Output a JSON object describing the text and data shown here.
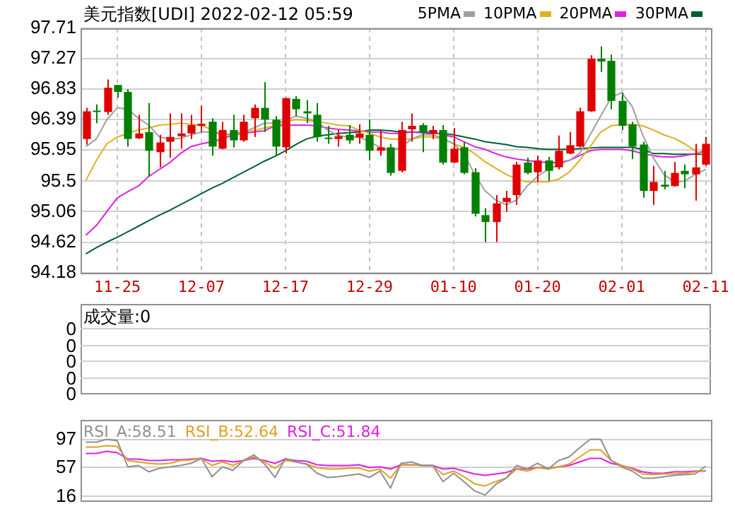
{
  "chart_data": [
    {
      "type": "candlestick",
      "title": "美元指数[UDI] 2022-02-12 05:59",
      "categories": [
        null,
        null,
        null,
        "11-25",
        null,
        null,
        null,
        null,
        null,
        null,
        null,
        "12-07",
        null,
        null,
        null,
        null,
        null,
        null,
        null,
        "12-17",
        null,
        null,
        null,
        null,
        null,
        null,
        null,
        "12-29",
        null,
        null,
        null,
        null,
        null,
        null,
        null,
        "01-10",
        null,
        null,
        null,
        null,
        null,
        null,
        null,
        "01-20",
        null,
        null,
        null,
        null,
        null,
        null,
        null,
        "02-01",
        null,
        null,
        null,
        null,
        null,
        null,
        null,
        "02-11"
      ],
      "ohlc": [
        [
          96.11,
          96.56,
          96.03,
          96.51
        ],
        [
          96.52,
          96.61,
          96.34,
          96.5
        ],
        [
          96.5,
          96.97,
          96.46,
          96.85
        ],
        [
          96.89,
          96.89,
          96.71,
          96.79
        ],
        [
          96.79,
          96.83,
          96.0,
          96.11
        ],
        [
          96.12,
          96.46,
          96.11,
          96.19
        ],
        [
          96.21,
          96.63,
          95.57,
          95.94
        ],
        [
          95.92,
          96.17,
          95.7,
          96.06
        ],
        [
          96.07,
          96.48,
          95.84,
          96.14
        ],
        [
          96.15,
          96.48,
          95.97,
          96.19
        ],
        [
          96.19,
          96.46,
          96.11,
          96.31
        ],
        [
          96.3,
          96.59,
          96.21,
          96.33
        ],
        [
          96.36,
          96.41,
          95.87,
          96.0
        ],
        [
          95.97,
          96.36,
          95.96,
          96.24
        ],
        [
          96.24,
          96.46,
          95.99,
          96.09
        ],
        [
          96.09,
          96.46,
          96.07,
          96.36
        ],
        [
          96.41,
          96.61,
          96.14,
          96.56
        ],
        [
          96.56,
          96.93,
          96.21,
          96.39
        ],
        [
          96.39,
          96.44,
          95.87,
          96.0
        ],
        [
          95.99,
          96.71,
          95.9,
          96.7
        ],
        [
          96.69,
          96.73,
          96.44,
          96.54
        ],
        [
          96.51,
          96.67,
          96.34,
          96.48
        ],
        [
          96.46,
          96.63,
          96.07,
          96.14
        ],
        [
          96.13,
          96.3,
          96.04,
          96.11
        ],
        [
          96.11,
          96.24,
          96.0,
          96.15
        ],
        [
          96.17,
          96.31,
          96.04,
          96.09
        ],
        [
          96.13,
          96.32,
          96.04,
          96.19
        ],
        [
          96.17,
          96.39,
          95.8,
          95.94
        ],
        [
          95.94,
          96.23,
          95.87,
          95.99
        ],
        [
          95.99,
          96.04,
          95.58,
          95.62
        ],
        [
          95.65,
          96.36,
          95.63,
          96.24
        ],
        [
          96.25,
          96.48,
          96.07,
          96.3
        ],
        [
          96.31,
          96.34,
          95.92,
          96.21
        ],
        [
          96.19,
          96.3,
          96.11,
          96.24
        ],
        [
          96.24,
          96.31,
          95.74,
          95.77
        ],
        [
          95.77,
          96.27,
          95.76,
          95.97
        ],
        [
          95.99,
          96.07,
          95.6,
          95.62
        ],
        [
          95.63,
          95.69,
          94.99,
          95.03
        ],
        [
          95.01,
          95.11,
          94.62,
          94.91
        ],
        [
          94.91,
          95.3,
          94.62,
          95.18
        ],
        [
          95.2,
          95.36,
          95.06,
          95.26
        ],
        [
          95.3,
          95.78,
          95.16,
          95.74
        ],
        [
          95.77,
          95.84,
          95.6,
          95.62
        ],
        [
          95.63,
          95.87,
          95.49,
          95.8
        ],
        [
          95.8,
          95.85,
          95.5,
          95.65
        ],
        [
          95.7,
          96.16,
          95.67,
          95.94
        ],
        [
          95.9,
          96.21,
          95.89,
          96.02
        ],
        [
          96.0,
          96.56,
          95.99,
          96.51
        ],
        [
          96.51,
          97.32,
          96.5,
          97.27
        ],
        [
          97.27,
          97.45,
          97.08,
          97.23
        ],
        [
          97.24,
          97.33,
          96.54,
          96.66
        ],
        [
          96.66,
          96.78,
          96.24,
          96.3
        ],
        [
          96.32,
          96.36,
          95.82,
          96.0
        ],
        [
          96.03,
          96.07,
          95.26,
          95.36
        ],
        [
          95.36,
          95.72,
          95.16,
          95.49
        ],
        [
          95.45,
          95.65,
          95.38,
          95.42
        ],
        [
          95.43,
          95.78,
          95.42,
          95.62
        ],
        [
          95.65,
          95.74,
          95.4,
          95.6
        ],
        [
          95.6,
          96.04,
          95.22,
          95.7
        ],
        [
          95.74,
          96.14,
          95.72,
          96.04
        ]
      ],
      "colors": [
        "#e00000",
        "#008000",
        "#e00000",
        "#008000",
        "#008000",
        "#e00000",
        "#008000",
        "#e00000",
        "#e00000",
        "#e00000",
        "#e00000",
        "#e00000",
        "#008000",
        "#e00000",
        "#008000",
        "#e00000",
        "#e00000",
        "#008000",
        "#008000",
        "#e00000",
        "#008000",
        "#008000",
        "#008000",
        "#008000",
        "#e00000",
        "#008000",
        "#e00000",
        "#008000",
        "#e00000",
        "#008000",
        "#e00000",
        "#e00000",
        "#008000",
        "#e00000",
        "#008000",
        "#e00000",
        "#008000",
        "#008000",
        "#008000",
        "#e00000",
        "#e00000",
        "#e00000",
        "#008000",
        "#e00000",
        "#008000",
        "#e00000",
        "#e00000",
        "#e00000",
        "#e00000",
        "#008000",
        "#008000",
        "#008000",
        "#008000",
        "#008000",
        "#e00000",
        "#008000",
        "#e00000",
        "#008000",
        "#e00000",
        "#e00000"
      ],
      "series": [
        {
          "name": "5PMA",
          "type": "line",
          "color": "#a0a0a0",
          "values": [
            96.0,
            96.11,
            96.39,
            96.56,
            96.54,
            96.41,
            96.31,
            96.14,
            96.11,
            96.12,
            96.17,
            96.21,
            96.21,
            96.17,
            96.19,
            96.21,
            96.27,
            96.34,
            96.34,
            96.38,
            96.44,
            96.41,
            96.36,
            96.24,
            96.16,
            96.14,
            96.14,
            96.07,
            95.99,
            95.94,
            95.99,
            96.11,
            96.17,
            96.17,
            96.12,
            96.04,
            95.9,
            95.6,
            95.36,
            95.23,
            95.16,
            95.23,
            95.43,
            95.57,
            95.67,
            95.74,
            95.8,
            95.9,
            96.17,
            96.44,
            96.71,
            96.78,
            96.58,
            96.17,
            95.84,
            95.6,
            95.49,
            95.5,
            95.6,
            95.67
          ]
        },
        {
          "name": "10PMA",
          "type": "line",
          "color": "#e0b020",
          "values": [
            95.51,
            95.8,
            96.04,
            96.14,
            96.19,
            96.24,
            96.27,
            96.31,
            96.32,
            96.34,
            96.32,
            96.31,
            96.24,
            96.17,
            96.17,
            96.21,
            96.23,
            96.27,
            96.3,
            96.36,
            96.39,
            96.38,
            96.36,
            96.34,
            96.31,
            96.3,
            96.24,
            96.19,
            96.14,
            96.11,
            96.11,
            96.11,
            96.14,
            96.14,
            96.11,
            96.04,
            95.99,
            95.9,
            95.78,
            95.69,
            95.6,
            95.53,
            95.49,
            95.49,
            95.49,
            95.53,
            95.63,
            95.8,
            96.0,
            96.21,
            96.3,
            96.32,
            96.32,
            96.3,
            96.24,
            96.17,
            96.12,
            96.04,
            95.94,
            95.87
          ]
        },
        {
          "name": "20PMA",
          "type": "line",
          "color": "#e020e0",
          "values": [
            94.72,
            94.86,
            95.06,
            95.26,
            95.35,
            95.43,
            95.57,
            95.67,
            95.77,
            95.9,
            96.0,
            96.04,
            96.07,
            96.11,
            96.17,
            96.19,
            96.21,
            96.23,
            96.3,
            96.31,
            96.31,
            96.31,
            96.3,
            96.27,
            96.25,
            96.24,
            96.23,
            96.21,
            96.21,
            96.19,
            96.19,
            96.21,
            96.21,
            96.21,
            96.17,
            96.14,
            96.07,
            96.0,
            95.96,
            95.9,
            95.85,
            95.82,
            95.8,
            95.78,
            95.77,
            95.77,
            95.8,
            95.87,
            95.94,
            95.96,
            95.96,
            95.96,
            95.94,
            95.9,
            95.87,
            95.85,
            95.85,
            95.87,
            95.9,
            95.94
          ]
        },
        {
          "name": "30PMA",
          "type": "line",
          "color": "#006030",
          "values": [
            94.45,
            94.54,
            94.62,
            94.69,
            94.77,
            94.85,
            94.93,
            95.01,
            95.08,
            95.16,
            95.24,
            95.32,
            95.4,
            95.47,
            95.55,
            95.63,
            95.71,
            95.79,
            95.86,
            95.94,
            96.03,
            96.11,
            96.15,
            96.17,
            96.19,
            96.2,
            96.21,
            96.24,
            96.24,
            96.23,
            96.21,
            96.21,
            96.2,
            96.19,
            96.19,
            96.17,
            96.14,
            96.11,
            96.07,
            96.05,
            96.03,
            96.0,
            95.99,
            95.97,
            95.96,
            95.96,
            95.96,
            95.97,
            95.98,
            95.99,
            95.99,
            95.99,
            95.99,
            95.96,
            95.9,
            95.9,
            95.89,
            95.89,
            95.89,
            95.89
          ]
        }
      ],
      "ylim": [
        94.18,
        97.71
      ],
      "yticks": [
        94.18,
        94.62,
        95.06,
        95.5,
        95.95,
        96.39,
        96.83,
        97.27,
        97.71
      ],
      "grid": true,
      "legend": "top right"
    },
    {
      "type": "other",
      "title": "成交量:0",
      "annotations": [
        "0",
        "0",
        "0",
        "0",
        "0"
      ]
    },
    {
      "type": "line",
      "categories": [
        null,
        null,
        null,
        null,
        null,
        null,
        null,
        null,
        null,
        null,
        null,
        null,
        null,
        null,
        null,
        null,
        null,
        null,
        null,
        null,
        null,
        null,
        null,
        null,
        null,
        null,
        null,
        null,
        null,
        null,
        null,
        null,
        null,
        null,
        null,
        null,
        null,
        null,
        null,
        null,
        null,
        null,
        null,
        null,
        null,
        null,
        null,
        null,
        null,
        null,
        null,
        null,
        null,
        null,
        null,
        null,
        null,
        null,
        null,
        null
      ],
      "series": [
        {
          "name": "RSI_A:58.51",
          "color": "#909090",
          "values": [
            93,
            93,
            97,
            95,
            58,
            60,
            51,
            56,
            58,
            60,
            63,
            70,
            44,
            58,
            53,
            67,
            75,
            62,
            43,
            70,
            65,
            62,
            49,
            43,
            44,
            46,
            48,
            43,
            52,
            28,
            63,
            65,
            60,
            60,
            37,
            49,
            37,
            24,
            18,
            33,
            42,
            60,
            55,
            63,
            55,
            67,
            72,
            85,
            97,
            97,
            67,
            58,
            52,
            42,
            42,
            44,
            46,
            47,
            48,
            59
          ]
        },
        {
          "name": "RSI_B:52.64",
          "color": "#e0a020",
          "values": [
            86,
            86,
            88,
            87,
            67,
            65,
            63,
            62,
            63,
            67,
            68,
            70,
            60,
            65,
            60,
            67,
            72,
            65,
            56,
            67,
            65,
            62,
            57,
            55,
            55,
            56,
            56,
            52,
            55,
            42,
            61,
            61,
            60,
            60,
            47,
            52,
            44,
            34,
            31,
            37,
            42,
            55,
            52,
            57,
            55,
            58,
            62,
            72,
            82,
            82,
            67,
            60,
            55,
            48,
            47,
            48,
            48,
            49,
            51,
            53
          ]
        },
        {
          "name": "RSI_C:51.84",
          "color": "#e020e0",
          "values": [
            77,
            77,
            80,
            78,
            69,
            69,
            67,
            67,
            68,
            68,
            69,
            70,
            66,
            67,
            65,
            67,
            70,
            67,
            63,
            69,
            67,
            66,
            61,
            60,
            60,
            60,
            61,
            57,
            58,
            55,
            61,
            61,
            60,
            60,
            55,
            56,
            52,
            48,
            46,
            48,
            50,
            55,
            55,
            57,
            56,
            58,
            60,
            65,
            70,
            70,
            63,
            60,
            56,
            51,
            49,
            49,
            51,
            51,
            52,
            52
          ]
        }
      ],
      "ylim": [
        10,
        125
      ],
      "yticks": [
        16,
        57,
        97
      ],
      "grid": "y",
      "legend": "top left",
      "tick_labels": "y"
    }
  ]
}
